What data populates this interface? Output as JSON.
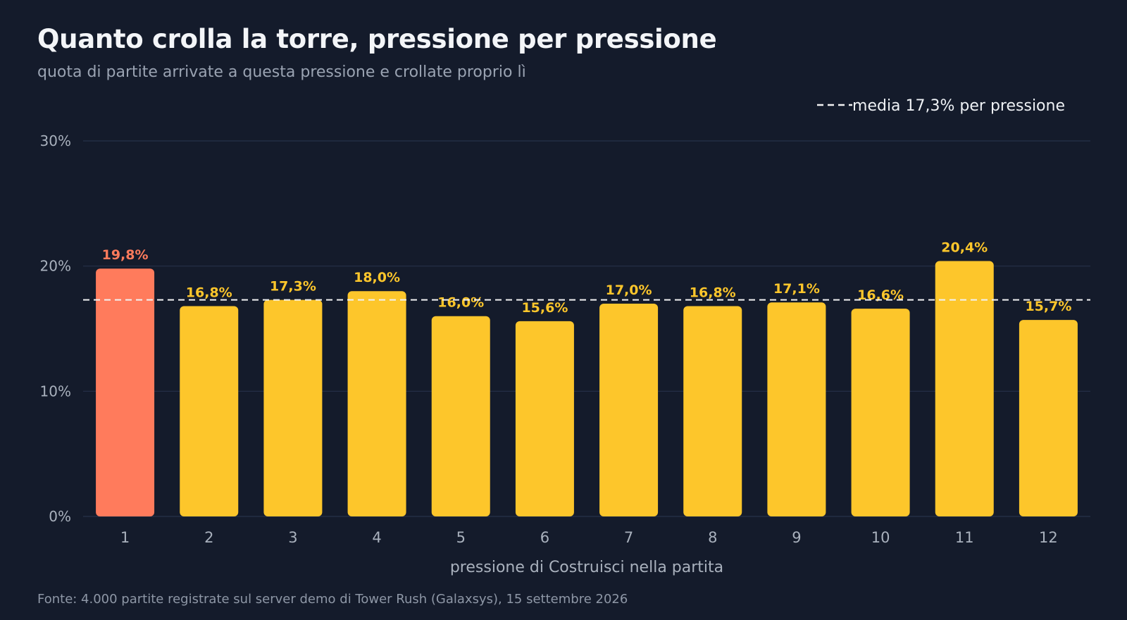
{
  "header": {
    "title": "Quanto crolla la torre, pressione per pressione",
    "subtitle": "quota di partite arrivate a questa pressione e crollate proprio lì"
  },
  "footer": {
    "source": "Fonte: 4.000 partite registrate sul server demo di Tower Rush (Galaxsys), 15 settembre 2026"
  },
  "colors": {
    "background": "#141b2b",
    "bar": "#fdc62b",
    "bar_highlight": "#ff7b5c",
    "grid": "#26324a",
    "average_line": "#f2f2f2",
    "tick_text": "#a9b1bd"
  },
  "chart_data": {
    "type": "bar",
    "xlabel": "pressione di Costruisci nella partita",
    "ylabel": "",
    "categories": [
      "1",
      "2",
      "3",
      "4",
      "5",
      "6",
      "7",
      "8",
      "9",
      "10",
      "11",
      "12"
    ],
    "values": [
      19.8,
      16.8,
      17.3,
      18.0,
      16.0,
      15.6,
      17.0,
      16.8,
      17.1,
      16.6,
      20.4,
      15.7
    ],
    "value_labels": [
      "19,8%",
      "16,8%",
      "17,3%",
      "18,0%",
      "16,0%",
      "15,6%",
      "17,0%",
      "16,8%",
      "17,1%",
      "16,6%",
      "20,4%",
      "15,7%"
    ],
    "highlight_category": "1",
    "ylim": [
      0,
      30
    ],
    "yticks": [
      0,
      10,
      20,
      30
    ],
    "ytick_labels": [
      "0%",
      "10%",
      "20%",
      "30%"
    ],
    "grid": true,
    "reference_line": {
      "value": 17.3,
      "label": "media 17,3% per pressione",
      "style": "dashed"
    },
    "legend_position": "top-right"
  }
}
